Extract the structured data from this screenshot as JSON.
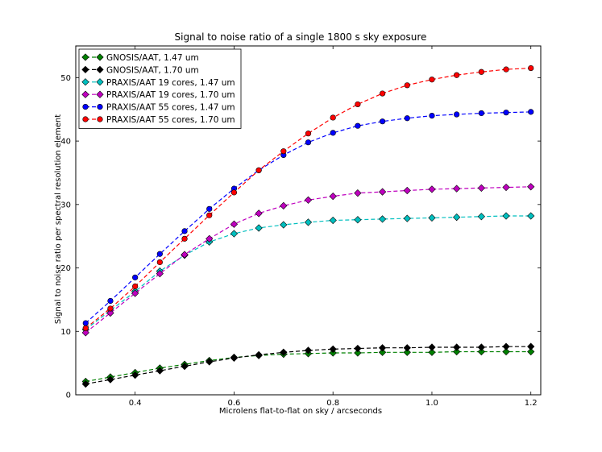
{
  "chart_data": {
    "type": "line",
    "title": "Signal to noise ratio of a single 1800 s sky exposure",
    "xlabel": "Microlens flat-to-flat on sky / arcseconds",
    "ylabel": "Signal to noise ratio per spectral resolution element",
    "xlim": [
      0.28,
      1.22
    ],
    "ylim": [
      0,
      55
    ],
    "xticks": [
      0.4,
      0.6,
      0.8,
      1.0,
      1.2
    ],
    "xtick_labels": [
      "0.4",
      "0.6",
      "0.8",
      "1.0",
      "1.2"
    ],
    "yticks": [
      0,
      10,
      20,
      30,
      40,
      50
    ],
    "ytick_labels": [
      "0",
      "10",
      "20",
      "30",
      "40",
      "50"
    ],
    "grid": false,
    "legend_position": "top-left",
    "x": [
      0.3,
      0.35,
      0.4,
      0.45,
      0.5,
      0.55,
      0.6,
      0.65,
      0.7,
      0.75,
      0.8,
      0.85,
      0.9,
      0.95,
      1.0,
      1.05,
      1.1,
      1.15,
      1.2
    ],
    "series": [
      {
        "name": "GNOSIS/AAT, 1.47 um",
        "color": "#008000",
        "marker": "diamond",
        "values": [
          2.1,
          2.8,
          3.5,
          4.2,
          4.8,
          5.4,
          5.9,
          6.2,
          6.4,
          6.5,
          6.6,
          6.6,
          6.7,
          6.7,
          6.7,
          6.8,
          6.8,
          6.8,
          6.8
        ]
      },
      {
        "name": "GNOSIS/AAT, 1.70 um",
        "color": "#000000",
        "marker": "diamond",
        "values": [
          1.7,
          2.4,
          3.1,
          3.8,
          4.5,
          5.2,
          5.8,
          6.3,
          6.7,
          7.0,
          7.2,
          7.3,
          7.4,
          7.4,
          7.5,
          7.5,
          7.5,
          7.6,
          7.6
        ]
      },
      {
        "name": "PRAXIS/AAT 19 cores, 1.47 um",
        "color": "#00bfbf",
        "marker": "diamond",
        "values": [
          10.3,
          13.3,
          16.3,
          19.5,
          22.0,
          24.1,
          25.4,
          26.3,
          26.8,
          27.2,
          27.5,
          27.6,
          27.7,
          27.8,
          27.9,
          28.0,
          28.1,
          28.2,
          28.2
        ]
      },
      {
        "name": "PRAXIS/AAT 19 cores, 1.70 um",
        "color": "#bf00bf",
        "marker": "diamond",
        "values": [
          9.8,
          12.9,
          16.0,
          19.1,
          22.1,
          24.6,
          26.9,
          28.6,
          29.8,
          30.7,
          31.3,
          31.8,
          32.0,
          32.2,
          32.4,
          32.5,
          32.6,
          32.7,
          32.8
        ]
      },
      {
        "name": "PRAXIS/AAT 55 cores, 1.47 um",
        "color": "#0000ff",
        "marker": "circle",
        "values": [
          11.3,
          14.8,
          18.5,
          22.2,
          25.8,
          29.3,
          32.5,
          35.4,
          37.8,
          39.8,
          41.3,
          42.4,
          43.1,
          43.6,
          44.0,
          44.2,
          44.4,
          44.5,
          44.6
        ]
      },
      {
        "name": "PRAXIS/AAT 55 cores, 1.70 um",
        "color": "#ff0000",
        "marker": "circle",
        "values": [
          10.5,
          13.6,
          17.1,
          20.9,
          24.6,
          28.3,
          31.9,
          35.4,
          38.4,
          41.2,
          43.7,
          45.8,
          47.5,
          48.8,
          49.7,
          50.4,
          50.9,
          51.3,
          51.5
        ]
      }
    ]
  }
}
